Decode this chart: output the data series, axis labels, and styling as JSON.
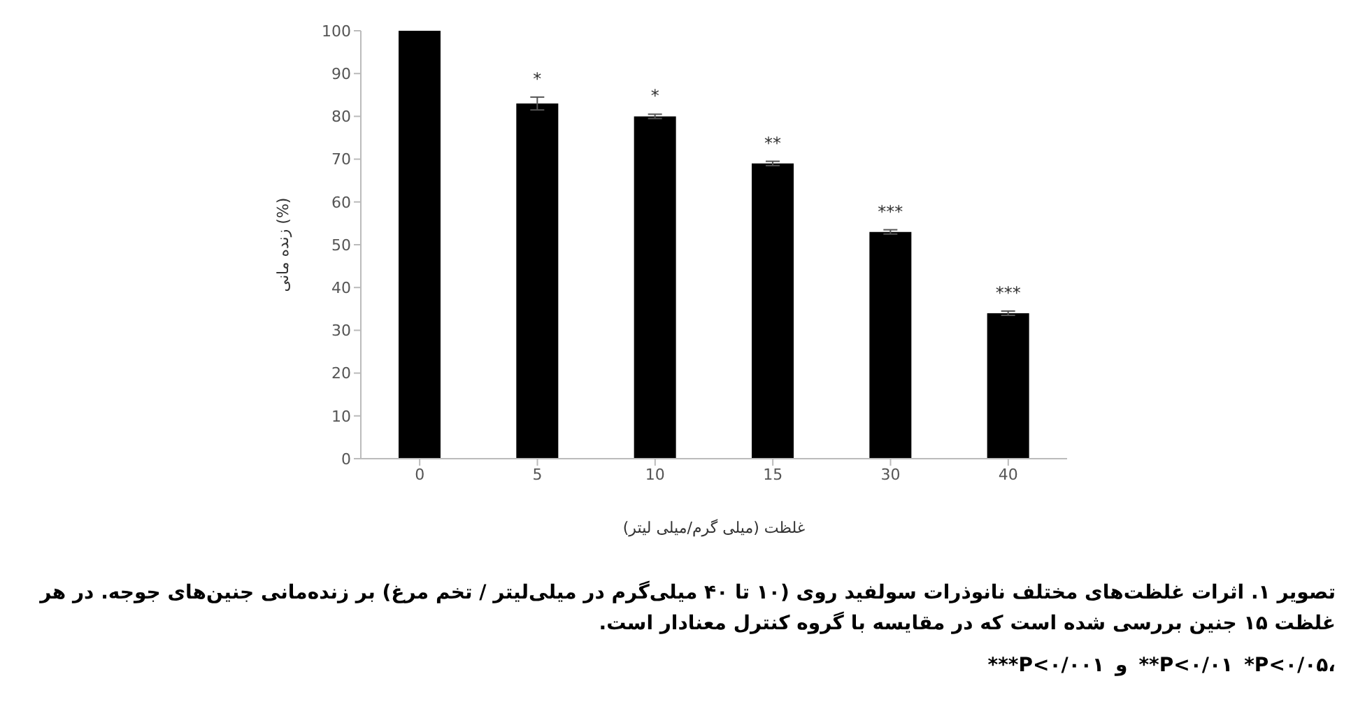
{
  "chart_data": {
    "type": "bar",
    "xlabel": "غلظت (میلی گرم/میلی لیتر)",
    "ylabel": "زنده مانی (%)",
    "categories": [
      "0",
      "5",
      "10",
      "15",
      "30",
      "40"
    ],
    "values": [
      100,
      83,
      80,
      69,
      53,
      34
    ],
    "errors": [
      null,
      1.5,
      0.5,
      0.5,
      0.5,
      0.5
    ],
    "value_labels": [
      null,
      "*",
      "*",
      "**",
      "***",
      "***"
    ],
    "color": "#000000",
    "ylim": [
      0,
      100
    ],
    "yticks": [
      0,
      10,
      20,
      30,
      40,
      50,
      60,
      70,
      80,
      90,
      100
    ],
    "grid": false,
    "legend": false,
    "annotations": [
      "تصویر ۱. اثرات غلظت‌های مختلف نانوذرات سولفید روی (۱۰ تا ۴۰ میلی‌گرم در میلی‌لیتر / تخم مرغ) بر زنده‌مانی جنین‌های جوجه. در هر غلظت ۱۵ جنین بررسی شده است که در مقایسه با گروه کنترل معنادار است.",
      "*P<۰/۰۵، **P<۰/۰۱ و ***P<۰/۰۰۱"
    ]
  }
}
